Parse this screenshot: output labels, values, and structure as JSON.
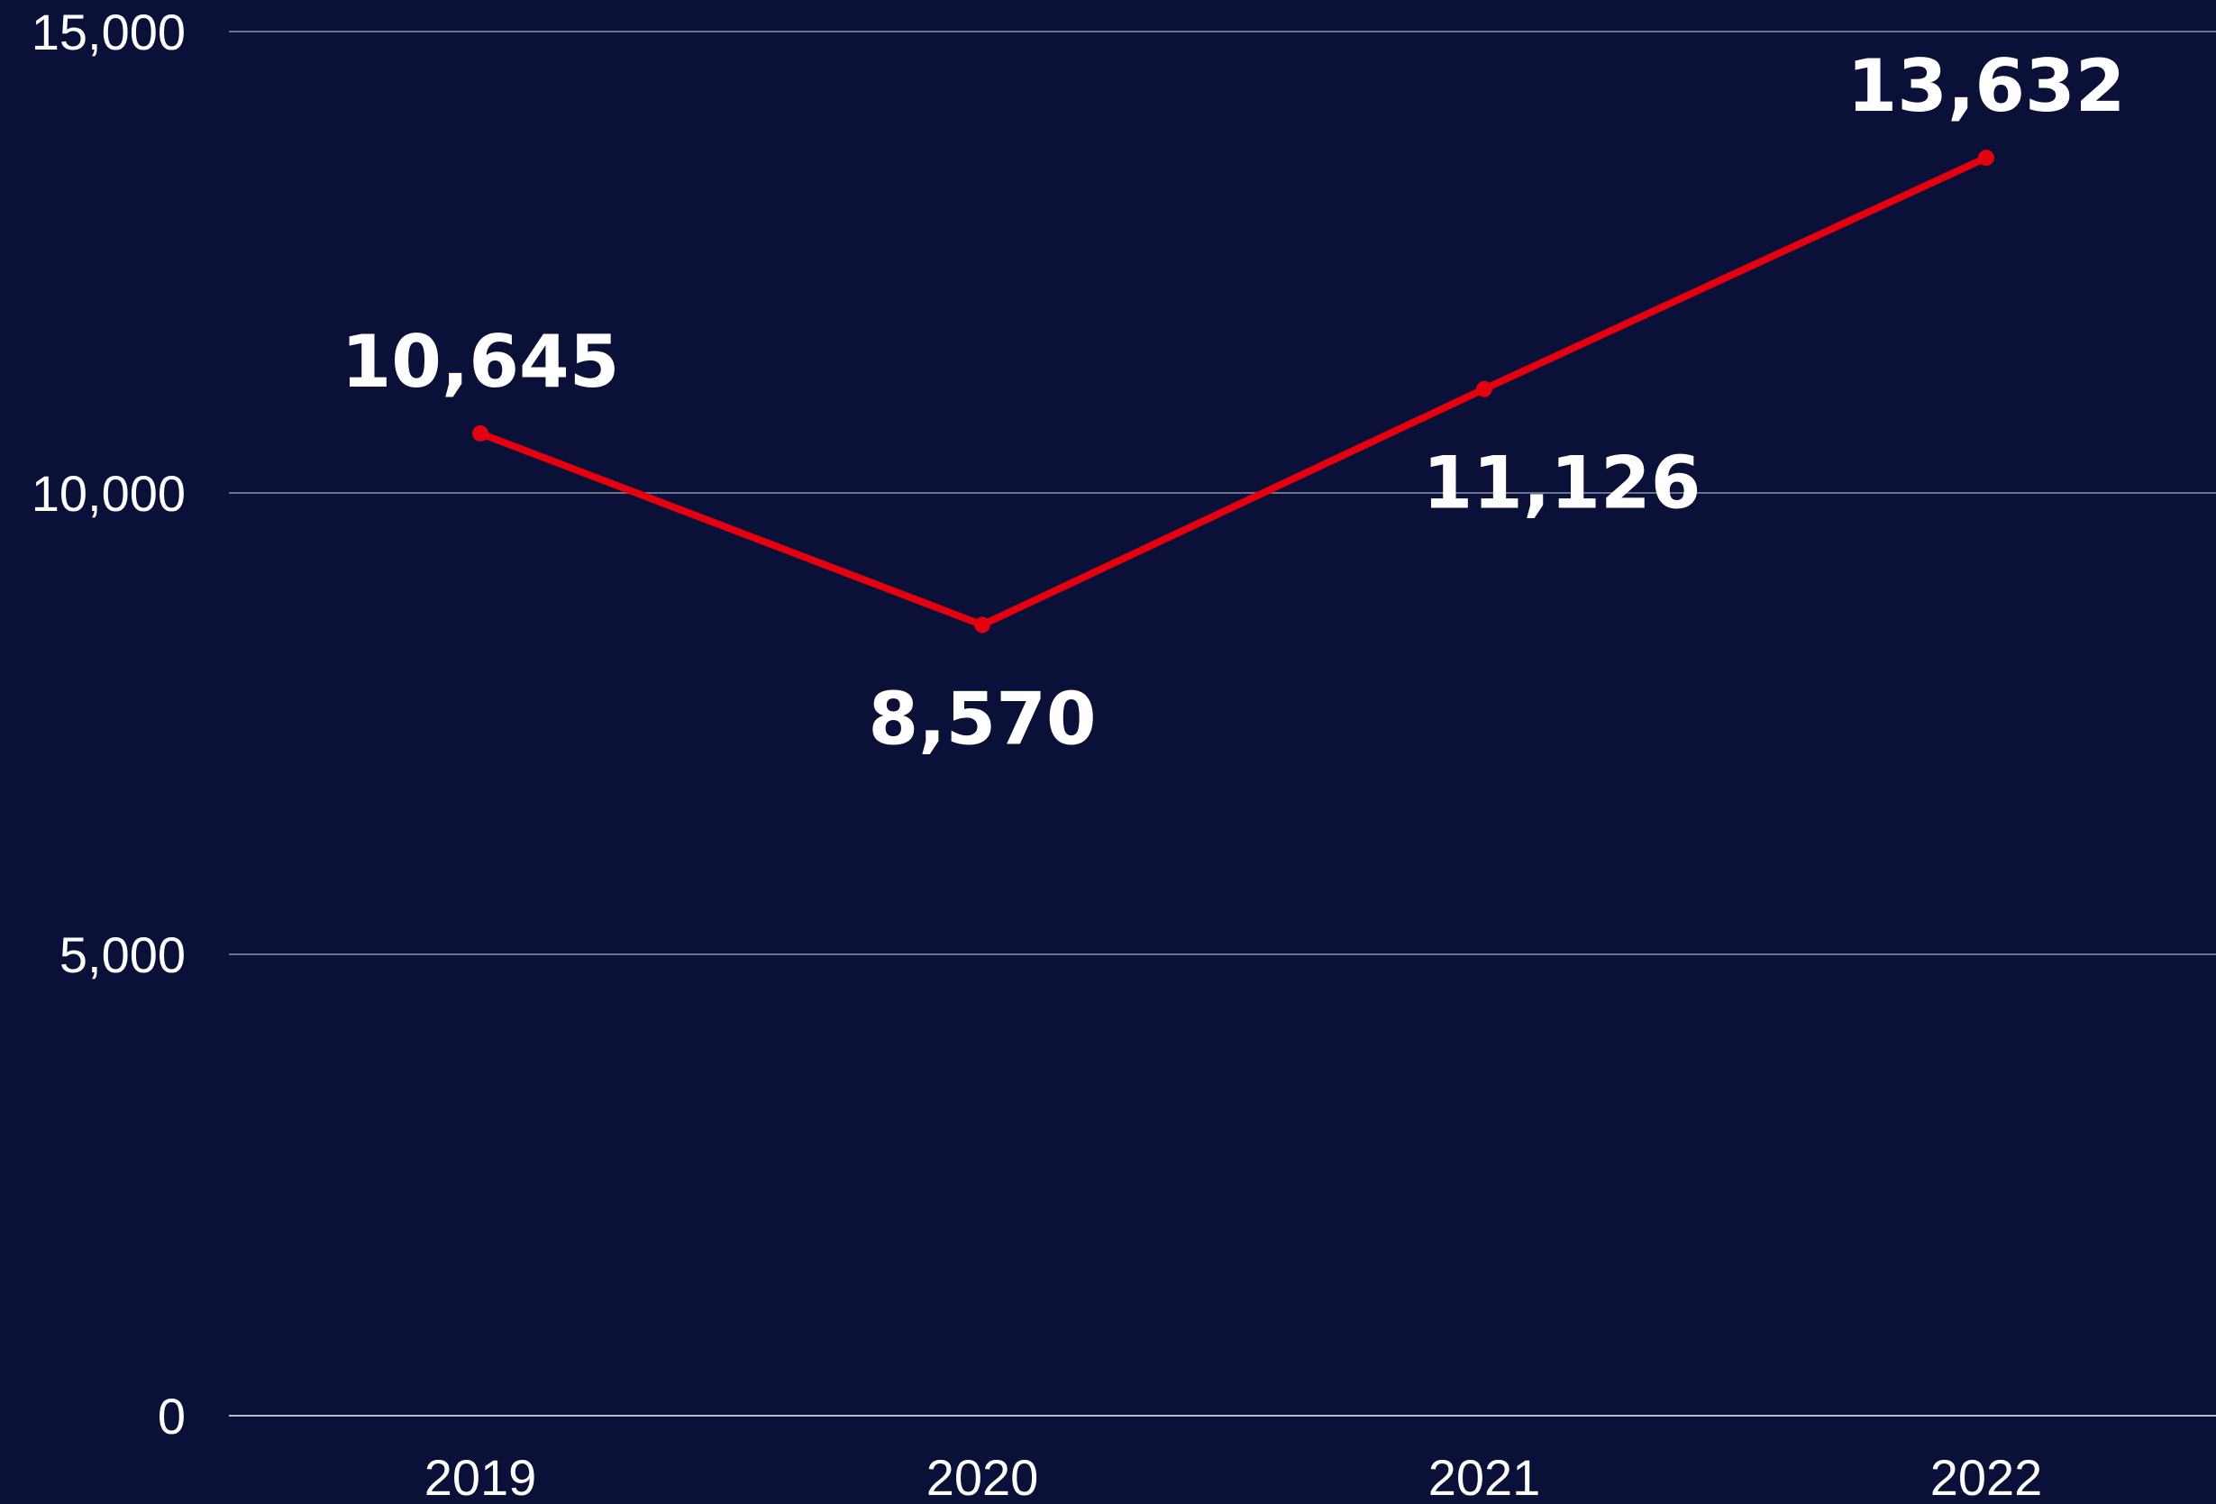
{
  "chart_data": {
    "type": "line",
    "title": "",
    "xlabel": "",
    "ylabel": "",
    "categories": [
      "2019",
      "2020",
      "2021",
      "2022"
    ],
    "series": [
      {
        "values": [
          10645,
          8570,
          11126,
          13632
        ],
        "labels": [
          "10,645",
          "8,570",
          "11,126",
          "13,632"
        ]
      }
    ],
    "ylim": [
      0,
      15000
    ],
    "yticks": [
      0,
      5000,
      10000,
      15000
    ],
    "ytick_labels": [
      "0",
      "5,000",
      "10,000",
      "15,000"
    ],
    "grid": true,
    "legend": "none"
  },
  "colors": {
    "background": "#0a1038",
    "line": "#e3000f",
    "gridline": "#6b7191",
    "text": "#ffffff"
  }
}
